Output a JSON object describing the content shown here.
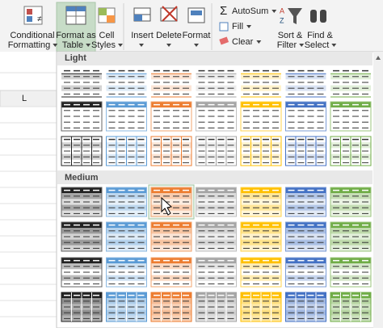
{
  "ribbon": {
    "styles": [
      {
        "top": "Conditional",
        "bottom": "Formatting"
      },
      {
        "top": "Format as",
        "bottom": "Table"
      },
      {
        "top": "Cell",
        "bottom": "Styles"
      }
    ],
    "cells": [
      "Insert",
      "Delete",
      "Format"
    ],
    "editing": [
      "AutoSum",
      "Fill",
      "Clear"
    ],
    "sort": {
      "top": "Sort &",
      "bottom": "Filter"
    },
    "find": {
      "top": "Find &",
      "bottom": "Select"
    }
  },
  "sheet": {
    "column": "L"
  },
  "gallery": {
    "sections": [
      "Light",
      "Medium"
    ]
  }
}
